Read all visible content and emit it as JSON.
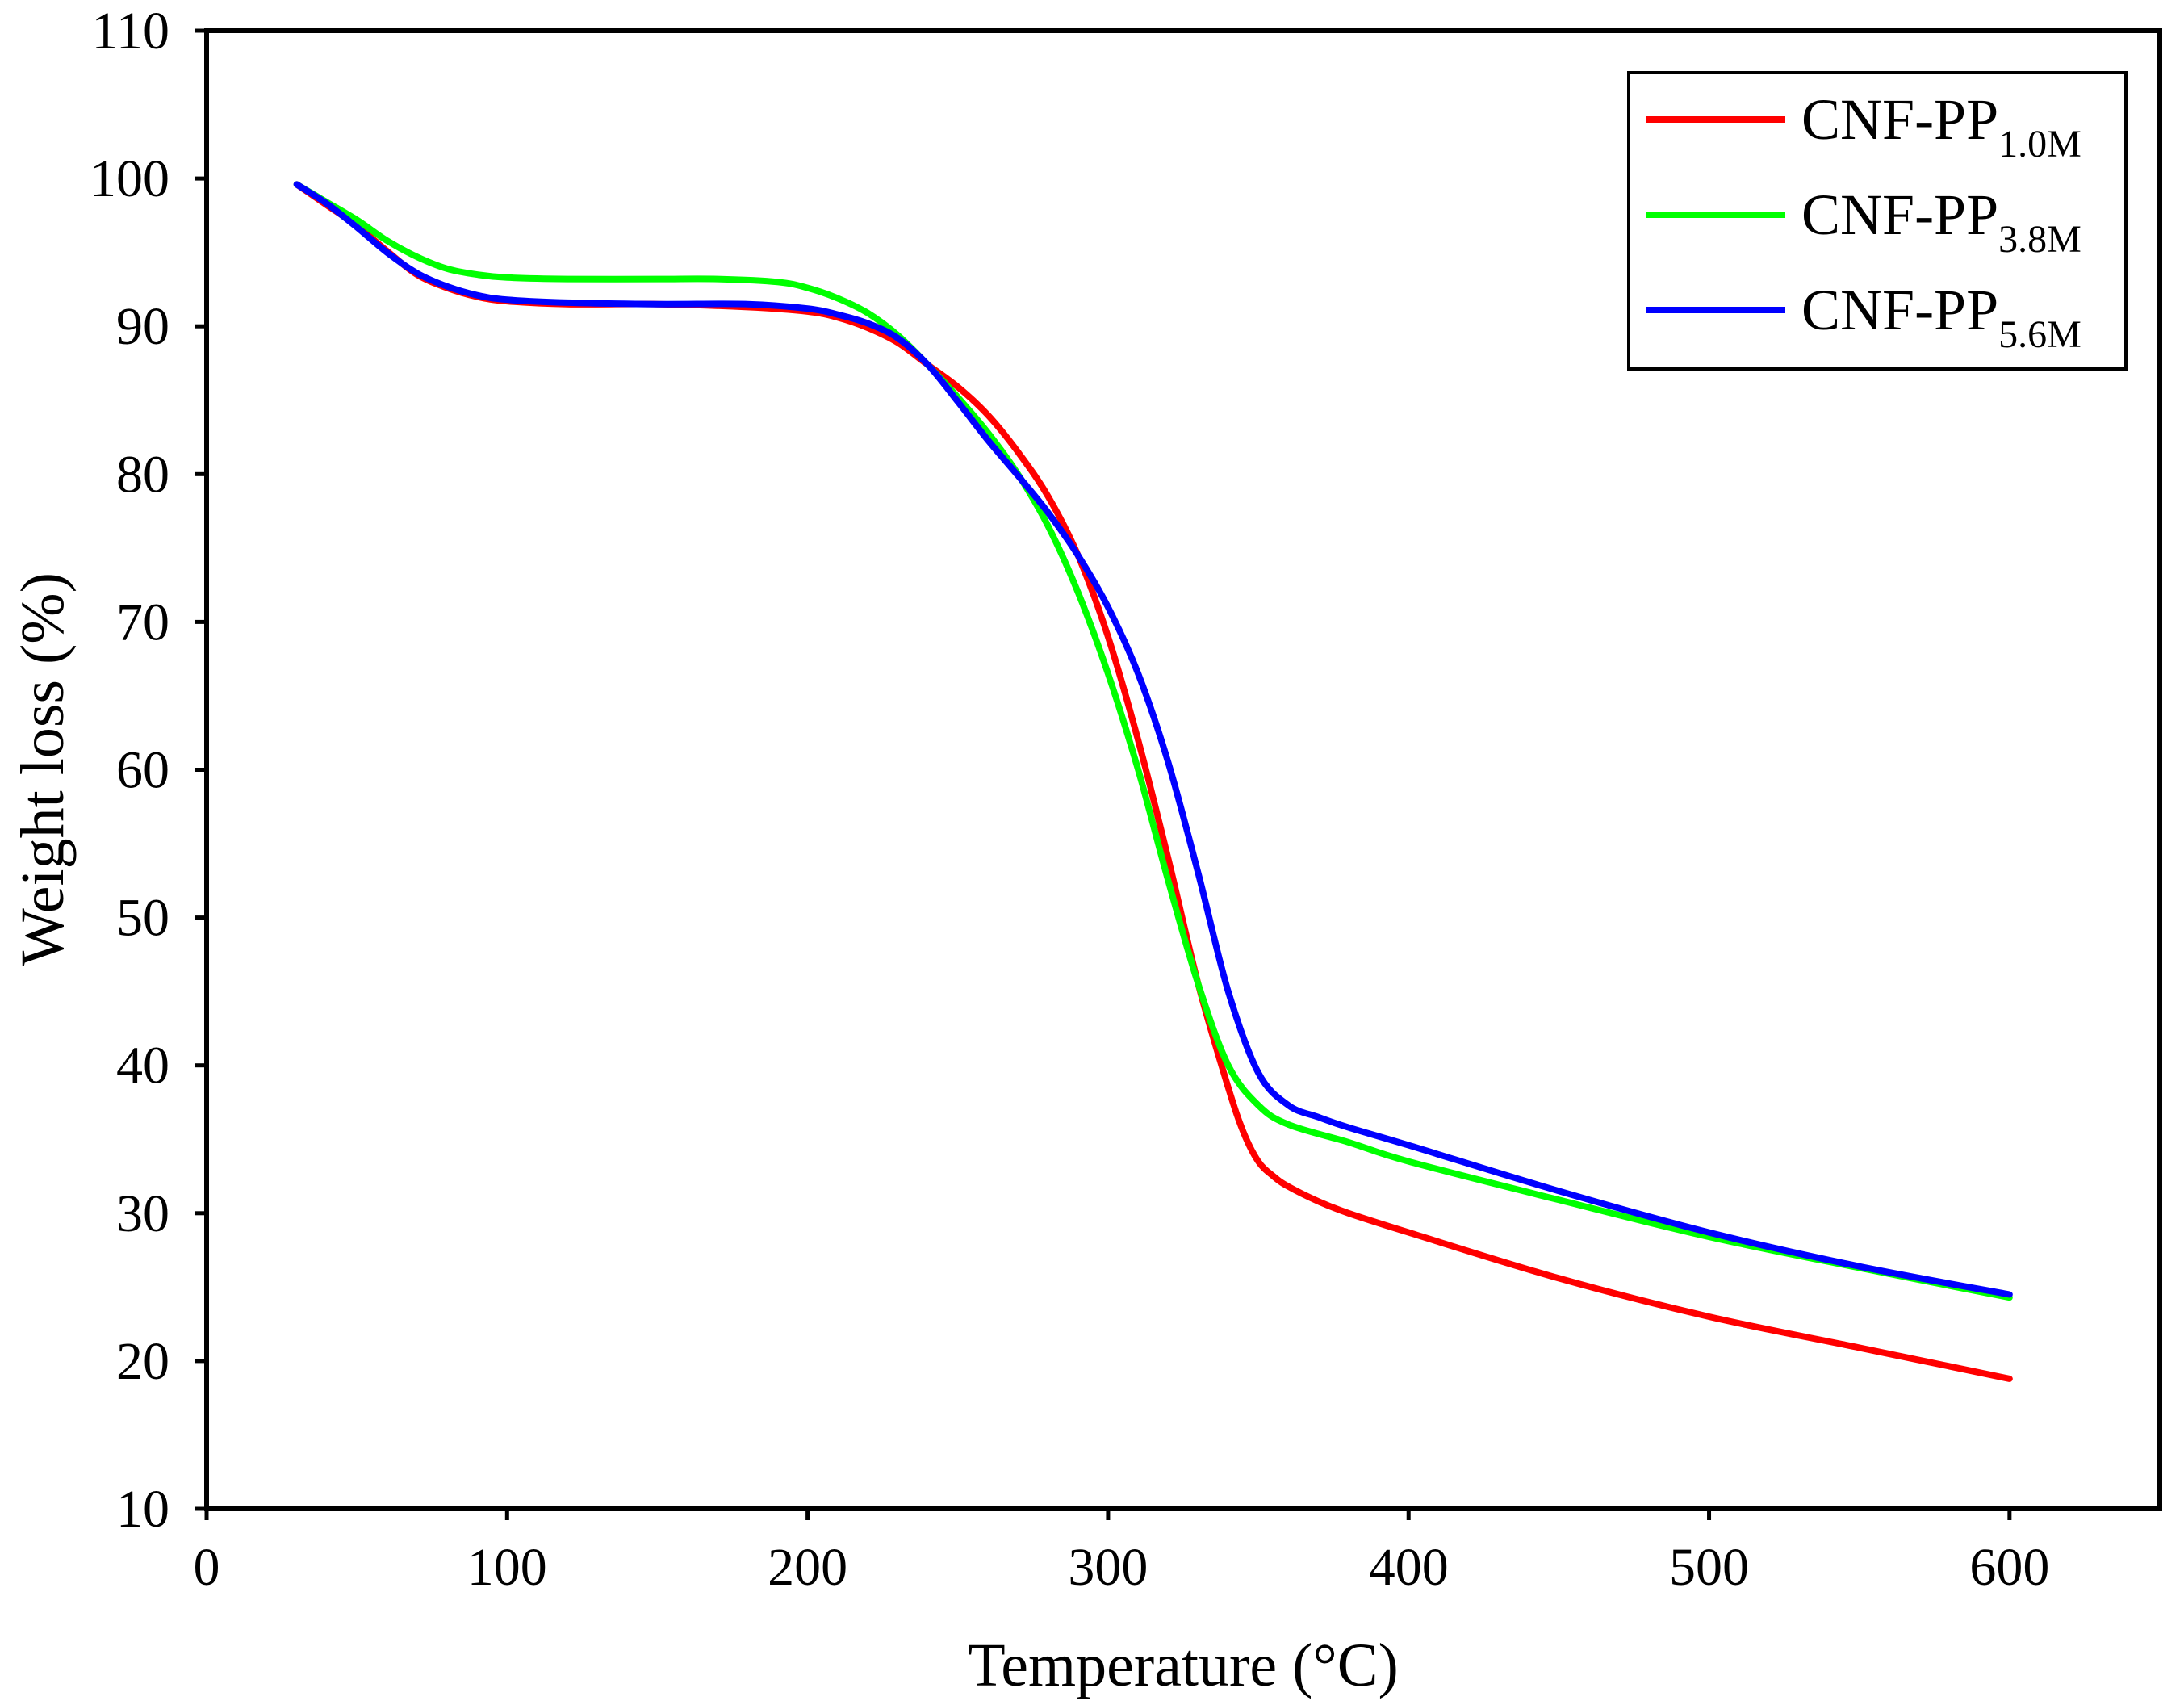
{
  "chart_data": {
    "type": "line",
    "title": "",
    "xlabel": "Temperature (°C)",
    "ylabel": "Weight loss (%)",
    "xlim": [
      0,
      650
    ],
    "ylim": [
      10,
      110
    ],
    "xticks": [
      0,
      100,
      200,
      300,
      400,
      500,
      600
    ],
    "yticks": [
      10,
      20,
      30,
      40,
      50,
      60,
      70,
      80,
      90,
      100,
      110
    ],
    "xtick_labels": [
      "0",
      "100",
      "200",
      "300",
      "400",
      "500",
      "600"
    ],
    "ytick_labels": [
      "10",
      "20",
      "30",
      "40",
      "50",
      "60",
      "70",
      "80",
      "90",
      "100",
      "110"
    ],
    "grid": false,
    "legend_position": "top-right",
    "series": [
      {
        "name": "CNF-PP1.0M",
        "label_main": "CNF-PP",
        "label_sub": "1.0M",
        "color": "#ff0000",
        "x": [
          30,
          40,
          50,
          60,
          70,
          80,
          90,
          100,
          120,
          150,
          180,
          200,
          210,
          220,
          230,
          240,
          250,
          260,
          270,
          280,
          290,
          300,
          310,
          320,
          330,
          340,
          345,
          350,
          355,
          360,
          370,
          380,
          400,
          450,
          500,
          550,
          600
        ],
        "y": [
          99.6,
          98.2,
          96.8,
          95.1,
          93.5,
          92.6,
          92.0,
          91.7,
          91.5,
          91.5,
          91.3,
          91.0,
          90.6,
          89.9,
          88.9,
          87.4,
          85.9,
          84.0,
          81.5,
          78.5,
          74.5,
          69.0,
          62.0,
          54.0,
          45.5,
          38.5,
          35.5,
          33.5,
          32.5,
          31.8,
          30.8,
          30.0,
          28.7,
          25.6,
          23.0,
          20.9,
          18.8
        ]
      },
      {
        "name": "CNF-PP3.8M",
        "label_main": "CNF-PP",
        "label_sub": "3.8M",
        "color": "#00ff00",
        "x": [
          30,
          40,
          50,
          60,
          70,
          80,
          90,
          100,
          120,
          150,
          170,
          190,
          200,
          210,
          220,
          230,
          240,
          250,
          260,
          270,
          280,
          290,
          300,
          310,
          320,
          330,
          340,
          350,
          360,
          380,
          400,
          450,
          500,
          550,
          600
        ],
        "y": [
          99.6,
          98.4,
          97.2,
          95.8,
          94.7,
          93.9,
          93.5,
          93.3,
          93.2,
          93.2,
          93.2,
          93.0,
          92.6,
          91.9,
          90.9,
          89.4,
          87.4,
          85.2,
          82.8,
          80.0,
          76.5,
          72.0,
          66.5,
          60.0,
          52.5,
          45.5,
          40.0,
          37.3,
          36.0,
          34.8,
          33.5,
          30.9,
          28.4,
          26.3,
          24.3
        ]
      },
      {
        "name": "CNF-PP5.6M",
        "label_main": "CNF-PP",
        "label_sub": "5.6M",
        "color": "#0000ff",
        "x": [
          30,
          40,
          50,
          60,
          70,
          80,
          90,
          100,
          120,
          150,
          180,
          200,
          210,
          220,
          230,
          240,
          250,
          260,
          270,
          280,
          290,
          300,
          310,
          320,
          330,
          340,
          350,
          360,
          370,
          380,
          400,
          450,
          500,
          550,
          600
        ],
        "y": [
          99.6,
          98.3,
          96.7,
          95.0,
          93.6,
          92.7,
          92.1,
          91.8,
          91.6,
          91.5,
          91.5,
          91.2,
          90.8,
          90.2,
          89.2,
          87.4,
          84.9,
          82.3,
          79.9,
          77.4,
          74.5,
          71.0,
          66.5,
          60.5,
          53.0,
          45.0,
          39.5,
          37.3,
          36.5,
          35.8,
          34.6,
          31.5,
          28.7,
          26.4,
          24.5
        ]
      }
    ]
  }
}
